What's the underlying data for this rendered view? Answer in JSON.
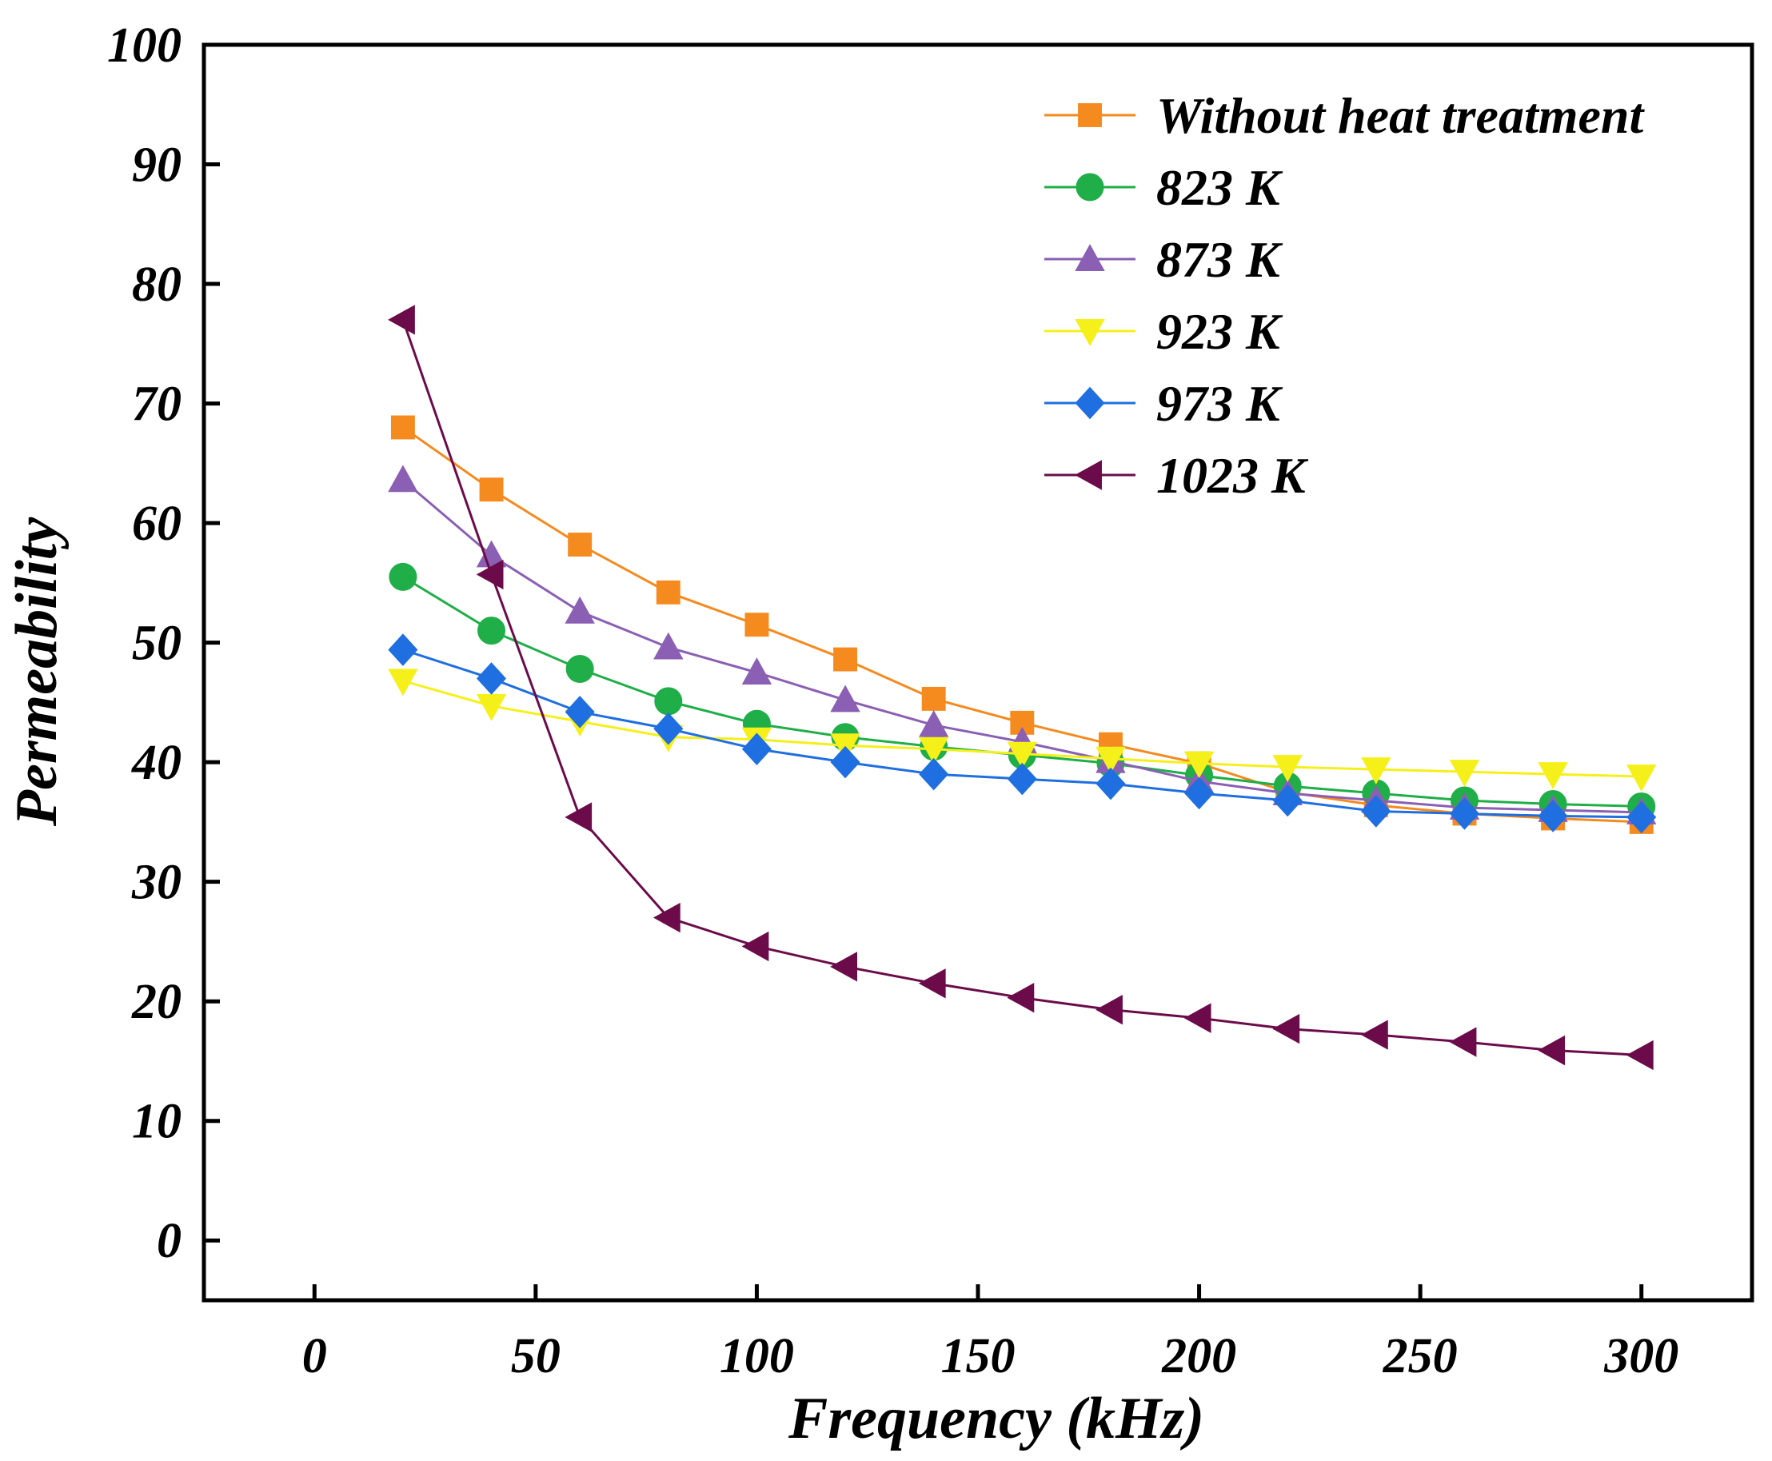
{
  "chart_data": {
    "type": "line",
    "title": "",
    "xlabel": "Frequency (kHz)",
    "ylabel": "Permeability",
    "xlim": [
      -25,
      325
    ],
    "ylim": [
      -5,
      100
    ],
    "xticks": [
      0,
      50,
      100,
      150,
      200,
      250,
      300
    ],
    "yticks": [
      0,
      10,
      20,
      30,
      40,
      50,
      60,
      70,
      80,
      90,
      100
    ],
    "legend_position": "top-right",
    "x": [
      20,
      40,
      60,
      80,
      100,
      120,
      140,
      160,
      180,
      200,
      220,
      240,
      260,
      280,
      300
    ],
    "series": [
      {
        "name": "Without heat treatment",
        "color": "#f58a1f",
        "marker": "square",
        "values": [
          68.0,
          62.8,
          58.2,
          54.2,
          51.5,
          48.6,
          45.3,
          43.3,
          41.5,
          39.9,
          37.5,
          36.4,
          35.7,
          35.3,
          35.0
        ]
      },
      {
        "name": "823 K",
        "color": "#1fae48",
        "marker": "circle",
        "values": [
          55.5,
          51.0,
          47.8,
          45.1,
          43.2,
          42.1,
          41.3,
          40.6,
          39.9,
          38.9,
          38.0,
          37.4,
          36.8,
          36.5,
          36.3
        ]
      },
      {
        "name": "873 K",
        "color": "#8a5fb4",
        "marker": "triangle-up",
        "values": [
          63.6,
          57.3,
          52.6,
          49.6,
          47.5,
          45.2,
          43.1,
          41.7,
          40.1,
          38.4,
          37.4,
          36.8,
          36.2,
          36.0,
          35.8
        ]
      },
      {
        "name": "923 K",
        "color": "#f5f01a",
        "marker": "triangle-down",
        "values": [
          46.8,
          44.7,
          43.4,
          42.1,
          41.9,
          41.4,
          41.1,
          40.7,
          40.3,
          39.9,
          39.6,
          39.4,
          39.2,
          39.0,
          38.8
        ]
      },
      {
        "name": "973 K",
        "color": "#1f6fe0",
        "marker": "diamond",
        "values": [
          49.4,
          47.0,
          44.2,
          42.8,
          41.1,
          40.0,
          39.0,
          38.6,
          38.2,
          37.4,
          36.8,
          35.9,
          35.7,
          35.5,
          35.4
        ]
      },
      {
        "name": "1023 K",
        "color": "#6b0b4a",
        "marker": "triangle-left",
        "values": [
          77.0,
          55.7,
          35.4,
          27.0,
          24.6,
          22.9,
          21.5,
          20.3,
          19.3,
          18.6,
          17.7,
          17.2,
          16.6,
          15.9,
          15.5
        ]
      }
    ]
  }
}
